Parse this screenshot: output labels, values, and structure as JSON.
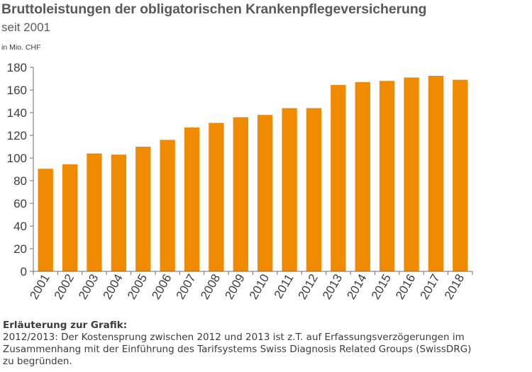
{
  "chart_data": {
    "type": "bar",
    "title": "Bruttoleistungen der obligatorischen Krankenpflegeversicherung",
    "subtitle": "seit 2001",
    "ylabel": "in Mio. CHF",
    "xlabel": "",
    "ylim": [
      0,
      180
    ],
    "yticks": [
      0,
      20,
      40,
      60,
      80,
      100,
      120,
      140,
      160,
      180
    ],
    "grid": false,
    "bar_color": "#f08a00",
    "categories": [
      "2001",
      "2002",
      "2003",
      "2004",
      "2005",
      "2006",
      "2007",
      "2008",
      "2009",
      "2010",
      "2011",
      "2012",
      "2013",
      "2014",
      "2015",
      "2016",
      "2017",
      "2018"
    ],
    "values": [
      90.5,
      94.5,
      104,
      103,
      110,
      116,
      127,
      131,
      136,
      138,
      144,
      144,
      164.5,
      167,
      168,
      171,
      172.5,
      169
    ]
  },
  "note": {
    "heading": "Erläuterung zur Grafik:",
    "lines": [
      "2012/2013: Der Kostensprung zwischen 2012 und 2013 ist z.T. auf Erfassungsverzögerungen im",
      "Zusammenhang mit der Einführung des Tarifsystems Swiss Diagnosis Related Groups (SwissDRG)",
      "zu begründen."
    ]
  }
}
